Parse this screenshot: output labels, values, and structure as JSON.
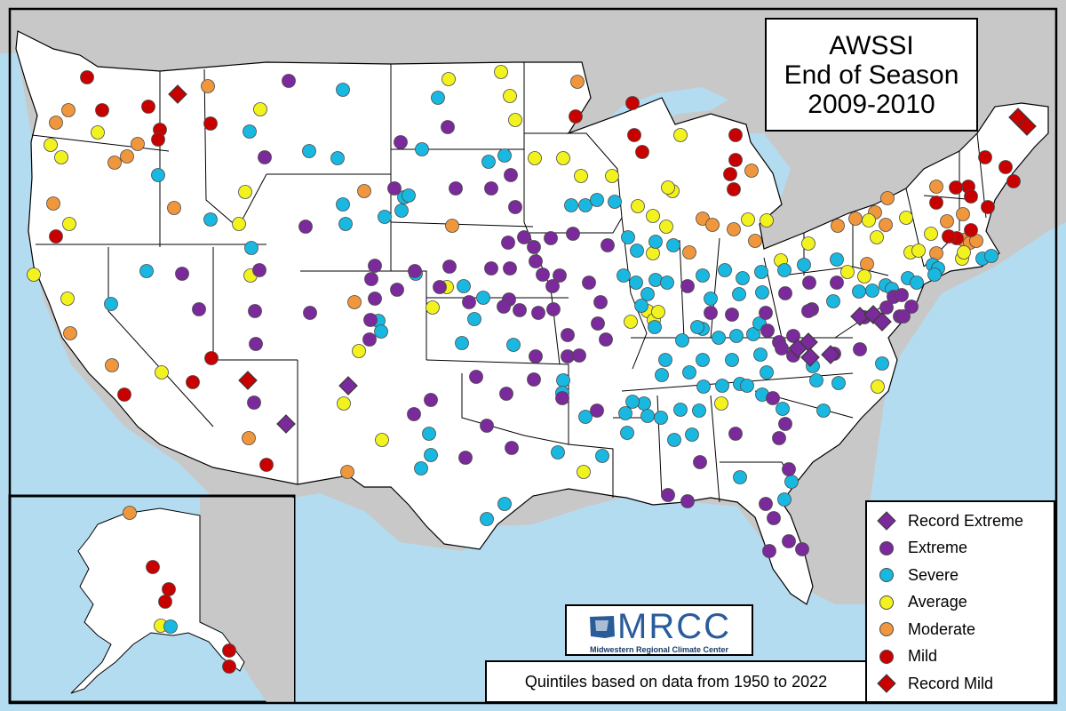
{
  "title": {
    "line1": "AWSSI",
    "line2": "End of Season",
    "line3": "2009-2010"
  },
  "note": "Quintiles based on data from 1950 to 2022",
  "logo": {
    "main": "MRCC",
    "sub": "Midwestern Regional Climate Center"
  },
  "colors": {
    "record_extreme": "#7a2a9a",
    "extreme": "#7a2a9a",
    "severe": "#19b8e0",
    "average": "#f2f21e",
    "moderate": "#f0963c",
    "mild": "#c80000",
    "record_mild": "#c80000",
    "land": "#ffffff",
    "foreign": "#c8c8c8",
    "water": "#b4dcf0"
  },
  "legend": [
    {
      "key": "record_extreme",
      "label": "Record Extreme",
      "shape": "diamond"
    },
    {
      "key": "extreme",
      "label": "Extreme",
      "shape": "circle"
    },
    {
      "key": "severe",
      "label": "Severe",
      "shape": "circle"
    },
    {
      "key": "average",
      "label": "Average",
      "shape": "circle"
    },
    {
      "key": "moderate",
      "label": "Moderate",
      "shape": "circle"
    },
    {
      "key": "mild",
      "label": "Mild",
      "shape": "circle"
    },
    {
      "key": "record_mild",
      "label": "Record Mild",
      "shape": "diamond"
    }
  ],
  "stations": {
    "record_extreme": [
      [
        392,
        434
      ],
      [
        322,
        477
      ],
      [
        968,
        356
      ],
      [
        983,
        354
      ],
      [
        993,
        362
      ],
      [
        910,
        385
      ],
      [
        898,
        392
      ],
      [
        912,
        402
      ],
      [
        935,
        399
      ]
    ],
    "record_mild": [
      [
        200,
        106
      ],
      [
        279,
        428
      ],
      [
        1146,
        132
      ],
      [
        1156,
        142
      ]
    ],
    "extreme": [
      [
        325,
        91
      ],
      [
        504,
        143
      ],
      [
        451,
        160
      ],
      [
        298,
        177
      ],
      [
        444,
        212
      ],
      [
        513,
        212
      ],
      [
        553,
        212
      ],
      [
        575,
        197
      ],
      [
        580,
        233
      ],
      [
        344,
        255
      ],
      [
        590,
        267
      ],
      [
        572,
        273
      ],
      [
        601,
        278
      ],
      [
        620,
        268
      ],
      [
        645,
        263
      ],
      [
        684,
        276
      ],
      [
        292,
        304
      ],
      [
        422,
        299
      ],
      [
        467,
        305
      ],
      [
        506,
        300
      ],
      [
        553,
        302
      ],
      [
        574,
        302
      ],
      [
        603,
        294
      ],
      [
        611,
        309
      ],
      [
        630,
        310
      ],
      [
        622,
        322
      ],
      [
        663,
        318
      ],
      [
        205,
        308
      ],
      [
        418,
        314
      ],
      [
        422,
        336
      ],
      [
        447,
        326
      ],
      [
        495,
        323
      ],
      [
        573,
        337
      ],
      [
        585,
        349
      ],
      [
        606,
        352
      ],
      [
        623,
        348
      ],
      [
        676,
        340
      ],
      [
        224,
        348
      ],
      [
        287,
        350
      ],
      [
        349,
        352
      ],
      [
        528,
        340
      ],
      [
        567,
        345
      ],
      [
        417,
        360
      ],
      [
        673,
        364
      ],
      [
        639,
        377
      ],
      [
        682,
        382
      ],
      [
        288,
        387
      ],
      [
        416,
        382
      ],
      [
        639,
        401
      ],
      [
        652,
        400
      ],
      [
        603,
        401
      ],
      [
        536,
        424
      ],
      [
        570,
        443
      ],
      [
        601,
        427
      ],
      [
        485,
        450
      ],
      [
        633,
        448
      ],
      [
        466,
        466
      ],
      [
        286,
        453
      ],
      [
        672,
        462
      ],
      [
        548,
        479
      ],
      [
        524,
        515
      ],
      [
        576,
        504
      ],
      [
        911,
        318
      ],
      [
        942,
        318
      ],
      [
        914,
        348
      ],
      [
        862,
        352
      ],
      [
        884,
        330
      ],
      [
        910,
        350
      ],
      [
        1006,
        334
      ],
      [
        1015,
        332
      ],
      [
        1026,
        345
      ],
      [
        1013,
        356
      ],
      [
        1017,
        356
      ],
      [
        998,
        346
      ],
      [
        973,
        357
      ],
      [
        877,
        385
      ],
      [
        893,
        378
      ],
      [
        880,
        392
      ],
      [
        893,
        400
      ],
      [
        800,
        352
      ],
      [
        824,
        354
      ],
      [
        864,
        372
      ],
      [
        774,
        322
      ],
      [
        939,
        398
      ],
      [
        968,
        393
      ],
      [
        828,
        488
      ],
      [
        870,
        448
      ],
      [
        884,
        477
      ],
      [
        877,
        493
      ],
      [
        888,
        528
      ],
      [
        862,
        567
      ],
      [
        871,
        583
      ],
      [
        888,
        609
      ],
      [
        866,
        620
      ],
      [
        903,
        618
      ],
      [
        788,
        520
      ],
      [
        752,
        557
      ],
      [
        774,
        564
      ]
    ],
    "severe": [
      [
        386,
        101
      ],
      [
        493,
        110
      ],
      [
        281,
        148
      ],
      [
        348,
        170
      ],
      [
        380,
        178
      ],
      [
        475,
        168
      ],
      [
        550,
        182
      ],
      [
        568,
        175
      ],
      [
        178,
        197
      ],
      [
        455,
        222
      ],
      [
        460,
        220
      ],
      [
        386,
        230
      ],
      [
        433,
        244
      ],
      [
        452,
        237
      ],
      [
        237,
        247
      ],
      [
        389,
        252
      ],
      [
        643,
        231
      ],
      [
        659,
        231
      ],
      [
        672,
        225
      ],
      [
        692,
        227
      ],
      [
        707,
        267
      ],
      [
        717,
        282
      ],
      [
        738,
        272
      ],
      [
        758,
        276
      ],
      [
        165,
        305
      ],
      [
        283,
        279
      ],
      [
        468,
        308
      ],
      [
        522,
        322
      ],
      [
        544,
        335
      ],
      [
        534,
        359
      ],
      [
        520,
        386
      ],
      [
        426,
        361
      ],
      [
        429,
        373
      ],
      [
        578,
        388
      ],
      [
        125,
        342
      ],
      [
        702,
        310
      ],
      [
        716,
        318
      ],
      [
        729,
        331
      ],
      [
        738,
        315
      ],
      [
        751,
        318
      ],
      [
        722,
        344
      ],
      [
        737,
        368
      ],
      [
        791,
        310
      ],
      [
        816,
        304
      ],
      [
        836,
        313
      ],
      [
        857,
        306
      ],
      [
        883,
        304
      ],
      [
        905,
        298
      ],
      [
        942,
        292
      ],
      [
        938,
        339
      ],
      [
        967,
        328
      ],
      [
        982,
        327
      ],
      [
        997,
        321
      ],
      [
        1004,
        325
      ],
      [
        1022,
        313
      ],
      [
        1032,
        318
      ],
      [
        1050,
        298
      ],
      [
        1056,
        302
      ],
      [
        1052,
        309
      ],
      [
        1106,
        291
      ],
      [
        1116,
        288
      ],
      [
        832,
        331
      ],
      [
        858,
        329
      ],
      [
        800,
        336
      ],
      [
        791,
        370
      ],
      [
        809,
        380
      ],
      [
        829,
        378
      ],
      [
        848,
        376
      ],
      [
        855,
        364
      ],
      [
        768,
        383
      ],
      [
        785,
        368
      ],
      [
        749,
        405
      ],
      [
        745,
        422
      ],
      [
        776,
        419
      ],
      [
        791,
        405
      ],
      [
        824,
        405
      ],
      [
        856,
        399
      ],
      [
        833,
        432
      ],
      [
        792,
        435
      ],
      [
        813,
        434
      ],
      [
        841,
        434
      ],
      [
        863,
        419
      ],
      [
        915,
        412
      ],
      [
        919,
        428
      ],
      [
        944,
        431
      ],
      [
        993,
        409
      ],
      [
        858,
        444
      ],
      [
        927,
        462
      ],
      [
        881,
        460
      ],
      [
        704,
        465
      ],
      [
        725,
        454
      ],
      [
        659,
        469
      ],
      [
        712,
        452
      ],
      [
        706,
        487
      ],
      [
        729,
        468
      ],
      [
        744,
        470
      ],
      [
        766,
        461
      ],
      [
        787,
        462
      ],
      [
        759,
        495
      ],
      [
        779,
        489
      ],
      [
        634,
        428
      ],
      [
        628,
        509
      ],
      [
        678,
        513
      ],
      [
        633,
        442
      ],
      [
        483,
        488
      ],
      [
        485,
        512
      ],
      [
        474,
        527
      ],
      [
        548,
        584
      ],
      [
        568,
        567
      ],
      [
        833,
        537
      ],
      [
        891,
        542
      ],
      [
        883,
        562
      ]
    ],
    "average": [
      [
        505,
        89
      ],
      [
        564,
        81
      ],
      [
        574,
        108
      ],
      [
        580,
        135
      ],
      [
        293,
        123
      ],
      [
        110,
        149
      ],
      [
        57,
        163
      ],
      [
        69,
        177
      ],
      [
        602,
        178
      ],
      [
        634,
        178
      ],
      [
        654,
        198
      ],
      [
        689,
        198
      ],
      [
        757,
        215
      ],
      [
        752,
        211
      ],
      [
        766,
        152
      ],
      [
        718,
        232
      ],
      [
        735,
        243
      ],
      [
        750,
        255
      ],
      [
        735,
        285
      ],
      [
        276,
        216
      ],
      [
        269,
        252
      ],
      [
        78,
        252
      ],
      [
        38,
        309
      ],
      [
        282,
        310
      ],
      [
        76,
        336
      ],
      [
        503,
        323
      ],
      [
        487,
        346
      ],
      [
        729,
        350
      ],
      [
        736,
        360
      ],
      [
        741,
        351
      ],
      [
        710,
        362
      ],
      [
        404,
        395
      ],
      [
        182,
        419
      ],
      [
        387,
        454
      ],
      [
        430,
        495
      ],
      [
        657,
        531
      ],
      [
        812,
        454
      ],
      [
        879,
        293
      ],
      [
        954,
        306
      ],
      [
        973,
        311
      ],
      [
        1025,
        284
      ],
      [
        1034,
        282
      ],
      [
        1083,
        291
      ],
      [
        1085,
        284
      ],
      [
        987,
        267
      ],
      [
        1048,
        263
      ],
      [
        978,
        248
      ],
      [
        1020,
        245
      ],
      [
        988,
        435
      ],
      [
        842,
        247
      ],
      [
        863,
        248
      ],
      [
        910,
        274
      ]
    ],
    "moderate": [
      [
        234,
        97
      ],
      [
        63,
        138
      ],
      [
        77,
        124
      ],
      [
        155,
        162
      ],
      [
        143,
        176
      ],
      [
        129,
        183
      ],
      [
        196,
        234
      ],
      [
        60,
        229
      ],
      [
        79,
        375
      ],
      [
        410,
        215
      ],
      [
        509,
        254
      ],
      [
        399,
        340
      ],
      [
        650,
        92
      ],
      [
        126,
        411
      ],
      [
        280,
        493
      ],
      [
        391,
        531
      ],
      [
        791,
        246
      ],
      [
        802,
        253
      ],
      [
        826,
        258
      ],
      [
        846,
        192
      ],
      [
        850,
        271
      ],
      [
        943,
        254
      ],
      [
        963,
        246
      ],
      [
        999,
        223
      ],
      [
        985,
        239
      ],
      [
        997,
        253
      ],
      [
        1054,
        210
      ],
      [
        1066,
        249
      ],
      [
        1084,
        241
      ],
      [
        1085,
        270
      ],
      [
        1092,
        273
      ],
      [
        1054,
        285
      ],
      [
        1099,
        271
      ],
      [
        976,
        297
      ],
      [
        776,
        284
      ]
    ],
    "mild": [
      [
        98,
        87
      ],
      [
        167,
        120
      ],
      [
        180,
        146
      ],
      [
        178,
        157
      ],
      [
        115,
        124
      ],
      [
        237,
        139
      ],
      [
        63,
        266
      ],
      [
        238,
        403
      ],
      [
        217,
        430
      ],
      [
        140,
        444
      ],
      [
        300,
        523
      ],
      [
        712,
        116
      ],
      [
        648,
        131
      ],
      [
        714,
        152
      ],
      [
        723,
        171
      ],
      [
        828,
        152
      ],
      [
        828,
        180
      ],
      [
        822,
        196
      ],
      [
        826,
        213
      ],
      [
        1109,
        177
      ],
      [
        1132,
        188
      ],
      [
        1141,
        204
      ],
      [
        1112,
        233
      ],
      [
        1090,
        210
      ],
      [
        1093,
        221
      ],
      [
        1076,
        211
      ],
      [
        1054,
        228
      ],
      [
        1077,
        268
      ],
      [
        1093,
        259
      ],
      [
        1068,
        266
      ]
    ]
  },
  "alaska_stations": {
    "moderate": [
      [
        146,
        577
      ]
    ],
    "mild": [
      [
        172,
        638
      ],
      [
        190,
        663
      ],
      [
        186,
        677
      ],
      [
        258,
        732
      ],
      [
        258,
        750
      ]
    ],
    "average": [
      [
        181,
        704
      ]
    ],
    "severe": [
      [
        192,
        705
      ]
    ]
  }
}
